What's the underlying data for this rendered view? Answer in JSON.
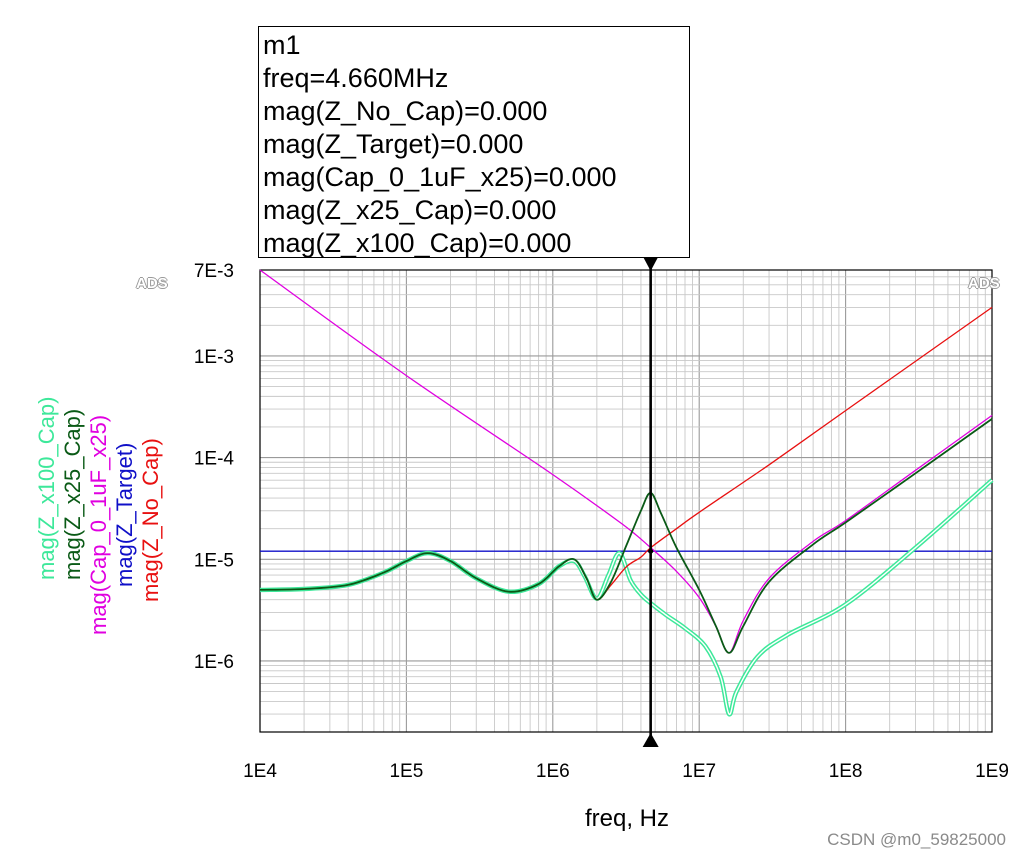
{
  "marker": {
    "lines": [
      "m1",
      "freq=4.660MHz",
      "mag(Z_No_Cap)=0.000",
      "mag(Z_Target)=0.000",
      "mag(Cap_0_1uF_x25)=0.000",
      "mag(Z_x25_Cap)=0.000",
      "mag(Z_x100_Cap)=0.000"
    ],
    "label": "m1",
    "freq_hz": 4660000
  },
  "watermark": "CSDN @m0_59825000",
  "ads_left": "ADS",
  "ads_right": "ADS",
  "chart_data": {
    "type": "line",
    "xlabel": "freq, Hz",
    "x_scale": "log",
    "y_scale": "log",
    "xlim": [
      10000,
      1000000000
    ],
    "ylim": [
      2e-07,
      0.007
    ],
    "x_ticks": [
      {
        "value": 10000,
        "label": "1E4"
      },
      {
        "value": 100000,
        "label": "1E5"
      },
      {
        "value": 1000000,
        "label": "1E6"
      },
      {
        "value": 10000000,
        "label": "1E7"
      },
      {
        "value": 100000000,
        "label": "1E8"
      },
      {
        "value": 1000000000,
        "label": "1E9"
      }
    ],
    "y_ticks": [
      {
        "value": 0.007,
        "label": "7E-3"
      },
      {
        "value": 0.001,
        "label": "1E-3"
      },
      {
        "value": 0.0001,
        "label": "1E-4"
      },
      {
        "value": 1e-05,
        "label": "1E-5"
      },
      {
        "value": 1e-06,
        "label": "1E-6"
      }
    ],
    "grid": true,
    "series": [
      {
        "name": "mag(Z_x100_Cap)",
        "color": "#3de89a",
        "double": true,
        "points": [
          [
            10000,
            5e-06
          ],
          [
            20000,
            5.1e-06
          ],
          [
            40000,
            5.6e-06
          ],
          [
            70000,
            7.4e-06
          ],
          [
            100000,
            9.6e-06
          ],
          [
            140000,
            1.15e-05
          ],
          [
            200000,
            9.6e-06
          ],
          [
            300000,
            6.5e-06
          ],
          [
            500000,
            4.8e-06
          ],
          [
            800000,
            5.7e-06
          ],
          [
            1100000,
            8.5e-06
          ],
          [
            1400000,
            9.6e-06
          ],
          [
            1650000,
            6.8e-06
          ],
          [
            2000000,
            4.1e-06
          ],
          [
            2400000,
            7e-06
          ],
          [
            2850000,
            1.15e-05
          ],
          [
            3400000,
            6.2e-06
          ],
          [
            4000000,
            4.5e-06
          ],
          [
            4660000,
            3.7e-06
          ],
          [
            6000000,
            2.8e-06
          ],
          [
            8000000,
            2.1e-06
          ],
          [
            11000000,
            1.4e-06
          ],
          [
            14000000,
            7e-07
          ],
          [
            16000000,
            3e-07
          ],
          [
            18000000,
            5e-07
          ],
          [
            25000000,
            1.1e-06
          ],
          [
            40000000,
            1.8e-06
          ],
          [
            100000000,
            3.6e-06
          ],
          [
            300000000,
            1.3e-05
          ],
          [
            1000000000,
            6e-05
          ]
        ]
      },
      {
        "name": "mag(Z_x25_Cap)",
        "color": "#0a5a16",
        "double": false,
        "points": [
          [
            10000,
            5e-06
          ],
          [
            20000,
            5.1e-06
          ],
          [
            40000,
            5.6e-06
          ],
          [
            70000,
            7.4e-06
          ],
          [
            100000,
            9.6e-06
          ],
          [
            140000,
            1.15e-05
          ],
          [
            200000,
            9.6e-06
          ],
          [
            300000,
            6.5e-06
          ],
          [
            500000,
            4.8e-06
          ],
          [
            800000,
            5.7e-06
          ],
          [
            1100000,
            8.5e-06
          ],
          [
            1400000,
            1e-05
          ],
          [
            1700000,
            6.5e-06
          ],
          [
            2000000,
            4e-06
          ],
          [
            2500000,
            6e-06
          ],
          [
            3200000,
            1.4e-05
          ],
          [
            4000000,
            3e-05
          ],
          [
            4660000,
            4.5e-05
          ],
          [
            5500000,
            2.8e-05
          ],
          [
            7000000,
            1.3e-05
          ],
          [
            10000000,
            5e-06
          ],
          [
            13000000,
            2.2e-06
          ],
          [
            16000000,
            1.2e-06
          ],
          [
            20000000,
            2.2e-06
          ],
          [
            30000000,
            6e-06
          ],
          [
            60000000,
            1.4e-05
          ],
          [
            100000000,
            2.3e-05
          ],
          [
            300000000,
            7e-05
          ],
          [
            1000000000,
            0.00024
          ]
        ]
      },
      {
        "name": "mag(Cap_0_1uF_x25)",
        "color": "#e000e0",
        "double": false,
        "points": [
          [
            10000,
            0.007
          ],
          [
            100000,
            0.00064
          ],
          [
            1000000,
            6.8e-05
          ],
          [
            3000000,
            2.2e-05
          ],
          [
            4660000,
            1.3e-05
          ],
          [
            7000000,
            7.6e-06
          ],
          [
            10000000,
            4.2e-06
          ],
          [
            13000000,
            2.2e-06
          ],
          [
            16000000,
            1.2e-06
          ],
          [
            20000000,
            2.5e-06
          ],
          [
            30000000,
            6.5e-06
          ],
          [
            60000000,
            1.5e-05
          ],
          [
            100000000,
            2.4e-05
          ],
          [
            300000000,
            7.5e-05
          ],
          [
            1000000000,
            0.00026
          ]
        ]
      },
      {
        "name": "mag(Z_Target)",
        "color": "#1010c8",
        "double": false,
        "points": [
          [
            10000,
            1.2e-05
          ],
          [
            1000000000,
            1.2e-05
          ]
        ]
      },
      {
        "name": "mag(Z_No_Cap)",
        "color": "#e81010",
        "double": false,
        "points": [
          [
            10000,
            5e-06
          ],
          [
            20000,
            5.1e-06
          ],
          [
            40000,
            5.6e-06
          ],
          [
            70000,
            7.4e-06
          ],
          [
            100000,
            9.6e-06
          ],
          [
            140000,
            1.15e-05
          ],
          [
            200000,
            9.6e-06
          ],
          [
            300000,
            6.5e-06
          ],
          [
            500000,
            4.8e-06
          ],
          [
            800000,
            5.7e-06
          ],
          [
            1100000,
            8.5e-06
          ],
          [
            1400000,
            1e-05
          ],
          [
            1700000,
            6.5e-06
          ],
          [
            2000000,
            4e-06
          ],
          [
            2500000,
            5.6e-06
          ],
          [
            3200000,
            8.5e-06
          ],
          [
            4000000,
            1.05e-05
          ],
          [
            4660000,
            1.3e-05
          ],
          [
            7000000,
            2e-05
          ],
          [
            10000000,
            2.9e-05
          ],
          [
            30000000,
            8.5e-05
          ],
          [
            100000000,
            0.00029
          ],
          [
            1000000000,
            0.003
          ]
        ]
      }
    ]
  }
}
